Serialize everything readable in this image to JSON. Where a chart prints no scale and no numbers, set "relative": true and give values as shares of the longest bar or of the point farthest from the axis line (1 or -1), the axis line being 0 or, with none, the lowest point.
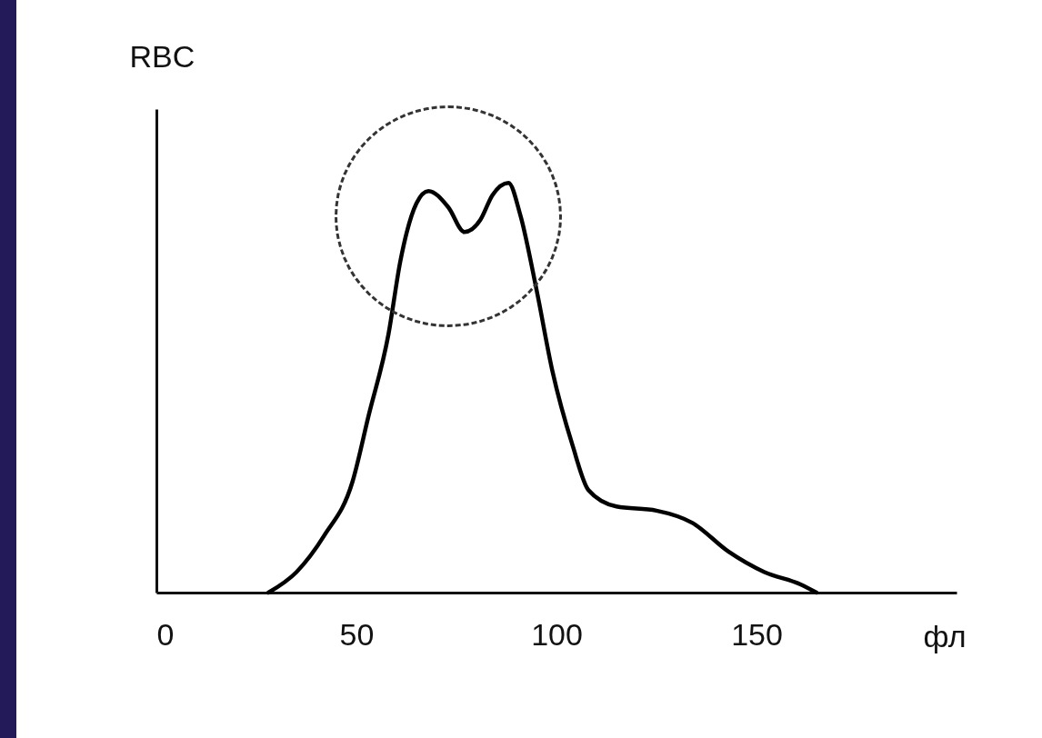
{
  "chart_data": {
    "type": "line",
    "relative": true,
    "xlabel": "фл",
    "ylabel": "RBC",
    "xlim": [
      0,
      200
    ],
    "xticks": [
      0,
      50,
      100,
      150
    ],
    "grid": false,
    "marker": "none",
    "line_style": "solid",
    "x": [
      28,
      35,
      42,
      49,
      53,
      58,
      61,
      65,
      68,
      73,
      77,
      81,
      84,
      88,
      91,
      95,
      99,
      104,
      108,
      115,
      125,
      134,
      143,
      152,
      161,
      165
    ],
    "series": [
      {
        "color": "#000000",
        "values": [
          0,
          0.05,
          0.14,
          0.27,
          0.43,
          0.63,
          0.81,
          0.95,
          0.98,
          0.94,
          0.88,
          0.91,
          0.97,
          1.0,
          0.92,
          0.74,
          0.54,
          0.36,
          0.25,
          0.21,
          0.2,
          0.17,
          0.1,
          0.05,
          0.02,
          0
        ]
      }
    ]
  }
}
